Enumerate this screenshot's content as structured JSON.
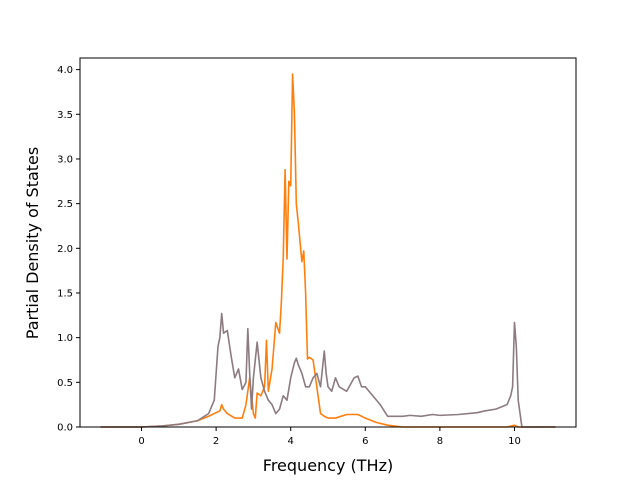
{
  "chart_data": {
    "type": "line",
    "xlabel": "Frequency (THz)",
    "ylabel": "Partial Density of States",
    "xlim": [
      -1.65,
      11.65
    ],
    "ylim": [
      0.0,
      4.13
    ],
    "xticks": [
      0,
      2,
      4,
      6,
      8,
      10
    ],
    "xtick_labels": [
      "0",
      "2",
      "4",
      "6",
      "8",
      "10"
    ],
    "yticks": [
      0.0,
      0.5,
      1.0,
      1.5,
      2.0,
      2.5,
      3.0,
      3.5,
      4.0
    ],
    "ytick_labels": [
      "0.0",
      "0.5",
      "1.0",
      "1.5",
      "2.0",
      "2.5",
      "3.0",
      "3.5",
      "4.0"
    ],
    "grid": false,
    "series": [
      {
        "color": "#ff7f0e",
        "x": [
          -1.1,
          0.0,
          0.5,
          1.0,
          1.5,
          1.8,
          2.0,
          2.1,
          2.15,
          2.2,
          2.3,
          2.5,
          2.7,
          2.8,
          2.9,
          3.0,
          3.05,
          3.1,
          3.2,
          3.3,
          3.35,
          3.4,
          3.5,
          3.6,
          3.7,
          3.75,
          3.8,
          3.85,
          3.9,
          3.95,
          4.0,
          4.05,
          4.1,
          4.15,
          4.2,
          4.3,
          4.35,
          4.4,
          4.45,
          4.5,
          4.6,
          4.7,
          4.8,
          4.9,
          5.0,
          5.2,
          5.5,
          5.8,
          6.0,
          6.3,
          6.6,
          7.0,
          8.0,
          9.0,
          9.8,
          10.0,
          10.1,
          11.1
        ],
        "values": [
          0.0,
          0.0,
          0.01,
          0.03,
          0.07,
          0.12,
          0.16,
          0.18,
          0.25,
          0.2,
          0.15,
          0.1,
          0.1,
          0.25,
          0.55,
          0.15,
          0.1,
          0.38,
          0.35,
          0.45,
          0.97,
          0.4,
          0.65,
          1.17,
          1.05,
          1.4,
          1.9,
          2.88,
          1.88,
          2.75,
          2.7,
          3.95,
          3.5,
          2.5,
          2.3,
          1.85,
          1.97,
          1.5,
          0.76,
          0.78,
          0.75,
          0.45,
          0.15,
          0.12,
          0.1,
          0.1,
          0.14,
          0.14,
          0.1,
          0.05,
          0.02,
          0.0,
          0.0,
          0.0,
          0.0,
          0.02,
          0.0,
          0.0
        ]
      },
      {
        "color": "#8c7b80",
        "x": [
          -1.1,
          0.0,
          0.5,
          1.0,
          1.5,
          1.8,
          1.95,
          2.0,
          2.05,
          2.1,
          2.15,
          2.2,
          2.3,
          2.4,
          2.5,
          2.6,
          2.7,
          2.8,
          2.85,
          2.9,
          2.95,
          3.0,
          3.1,
          3.15,
          3.2,
          3.3,
          3.4,
          3.5,
          3.6,
          3.7,
          3.8,
          3.9,
          4.0,
          4.1,
          4.15,
          4.2,
          4.3,
          4.4,
          4.5,
          4.6,
          4.7,
          4.8,
          4.9,
          4.95,
          5.0,
          5.1,
          5.2,
          5.3,
          5.5,
          5.7,
          5.8,
          5.9,
          6.0,
          6.2,
          6.4,
          6.6,
          7.0,
          7.2,
          7.5,
          7.8,
          8.0,
          8.5,
          9.0,
          9.2,
          9.5,
          9.8,
          9.9,
          9.95,
          10.0,
          10.05,
          10.1,
          10.2,
          11.1
        ],
        "values": [
          0.0,
          0.0,
          0.01,
          0.03,
          0.07,
          0.15,
          0.3,
          0.6,
          0.9,
          1.0,
          1.27,
          1.05,
          1.08,
          0.8,
          0.55,
          0.65,
          0.42,
          0.5,
          1.1,
          0.6,
          0.2,
          0.55,
          0.95,
          0.75,
          0.55,
          0.4,
          0.3,
          0.25,
          0.15,
          0.2,
          0.35,
          0.3,
          0.55,
          0.72,
          0.77,
          0.7,
          0.6,
          0.45,
          0.45,
          0.55,
          0.6,
          0.45,
          0.85,
          0.6,
          0.45,
          0.4,
          0.55,
          0.45,
          0.4,
          0.55,
          0.57,
          0.45,
          0.45,
          0.35,
          0.25,
          0.12,
          0.12,
          0.13,
          0.12,
          0.14,
          0.13,
          0.14,
          0.16,
          0.18,
          0.2,
          0.25,
          0.35,
          0.45,
          1.17,
          0.9,
          0.3,
          0.0,
          0.0
        ]
      }
    ]
  }
}
